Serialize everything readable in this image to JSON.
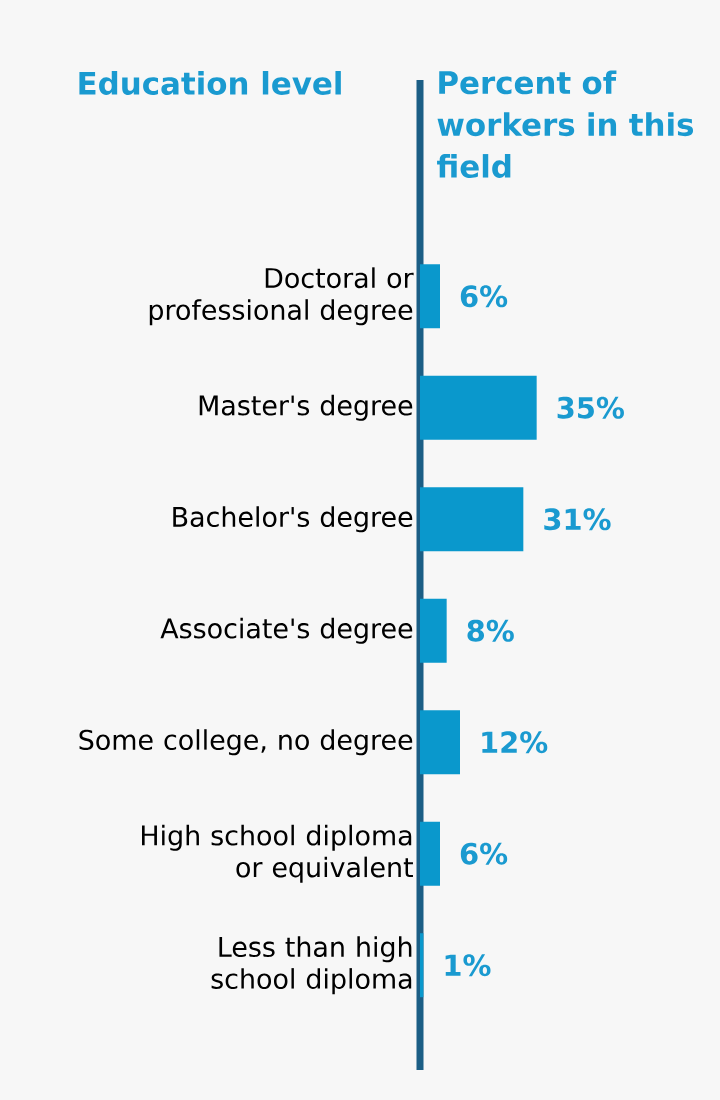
{
  "chart_data": {
    "type": "bar",
    "orientation": "horizontal",
    "annotations": [
      "Education level"
    ],
    "xlabel": "Percent of workers in this field",
    "categories": [
      "Doctoral or professional degree",
      "Master's degree",
      "Bachelor's degree",
      "Associate's degree",
      "Some college, no degree",
      "High school diploma or equivalent",
      "Less than high school diploma"
    ],
    "values": [
      6,
      35,
      31,
      8,
      12,
      6,
      1
    ],
    "value_labels": [
      "6%",
      "35%",
      "31%",
      "8%",
      "12%",
      "6%",
      "1%"
    ],
    "color": "#0a98cc",
    "xlim": [
      0,
      90
    ]
  }
}
